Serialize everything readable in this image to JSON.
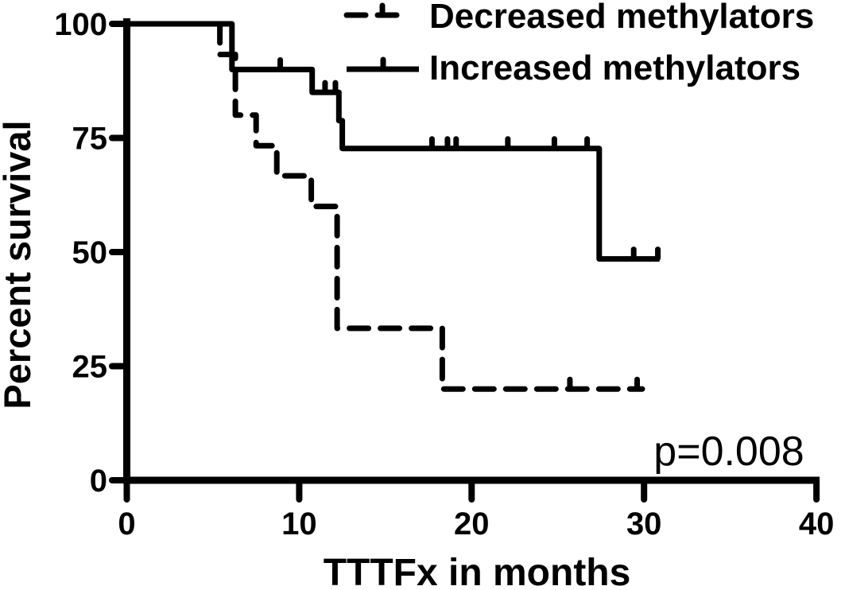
{
  "figure": {
    "background_color": "#ffffff",
    "ink_color": "#000000"
  },
  "chart_data": {
    "type": "line",
    "subtype": "kaplan_meier_step",
    "title": "",
    "xlabel": "TTTFx in months",
    "ylabel": "Percent survival",
    "xlim": [
      0,
      40
    ],
    "ylim": [
      0,
      100
    ],
    "x_ticks": [
      0,
      10,
      20,
      30,
      40
    ],
    "y_ticks": [
      0,
      25,
      50,
      75,
      100
    ],
    "grid": false,
    "legend_position": "top-right-inside",
    "annotation": {
      "text": "p=0.008"
    },
    "series": [
      {
        "name": "Decreased methylators",
        "line_style": "dashed",
        "color": "#000000",
        "points": [
          [
            0,
            100
          ],
          [
            5.4,
            100
          ],
          [
            5.4,
            93.3
          ],
          [
            6.3,
            93.3
          ],
          [
            6.3,
            80
          ],
          [
            7.5,
            80
          ],
          [
            7.5,
            73.3
          ],
          [
            8.7,
            73.3
          ],
          [
            8.7,
            66.7
          ],
          [
            10.7,
            66.7
          ],
          [
            10.7,
            60
          ],
          [
            12.2,
            60
          ],
          [
            12.2,
            33.3
          ],
          [
            18.3,
            33.3
          ],
          [
            18.3,
            20
          ],
          [
            29.9,
            20
          ]
        ],
        "censor_marks": [
          [
            25.7,
            20
          ],
          [
            29.6,
            20
          ]
        ]
      },
      {
        "name": "Increased methylators",
        "line_style": "solid",
        "color": "#000000",
        "points": [
          [
            0,
            100
          ],
          [
            6.1,
            100
          ],
          [
            6.1,
            90
          ],
          [
            10.75,
            90
          ],
          [
            10.75,
            85
          ],
          [
            12.3,
            85
          ],
          [
            12.3,
            78.8
          ],
          [
            12.5,
            78.8
          ],
          [
            12.5,
            72.7
          ],
          [
            27.4,
            72.7
          ],
          [
            27.4,
            48.5
          ],
          [
            30.9,
            48.5
          ]
        ],
        "censor_marks": [
          [
            8.9,
            90
          ],
          [
            11.5,
            85
          ],
          [
            12.1,
            85
          ],
          [
            17.7,
            72.7
          ],
          [
            18.6,
            72.7
          ],
          [
            19.1,
            72.7
          ],
          [
            22.1,
            72.7
          ],
          [
            24.8,
            72.7
          ],
          [
            26.7,
            72.7
          ],
          [
            29.4,
            48.5
          ],
          [
            30.8,
            48.5
          ]
        ]
      }
    ]
  }
}
